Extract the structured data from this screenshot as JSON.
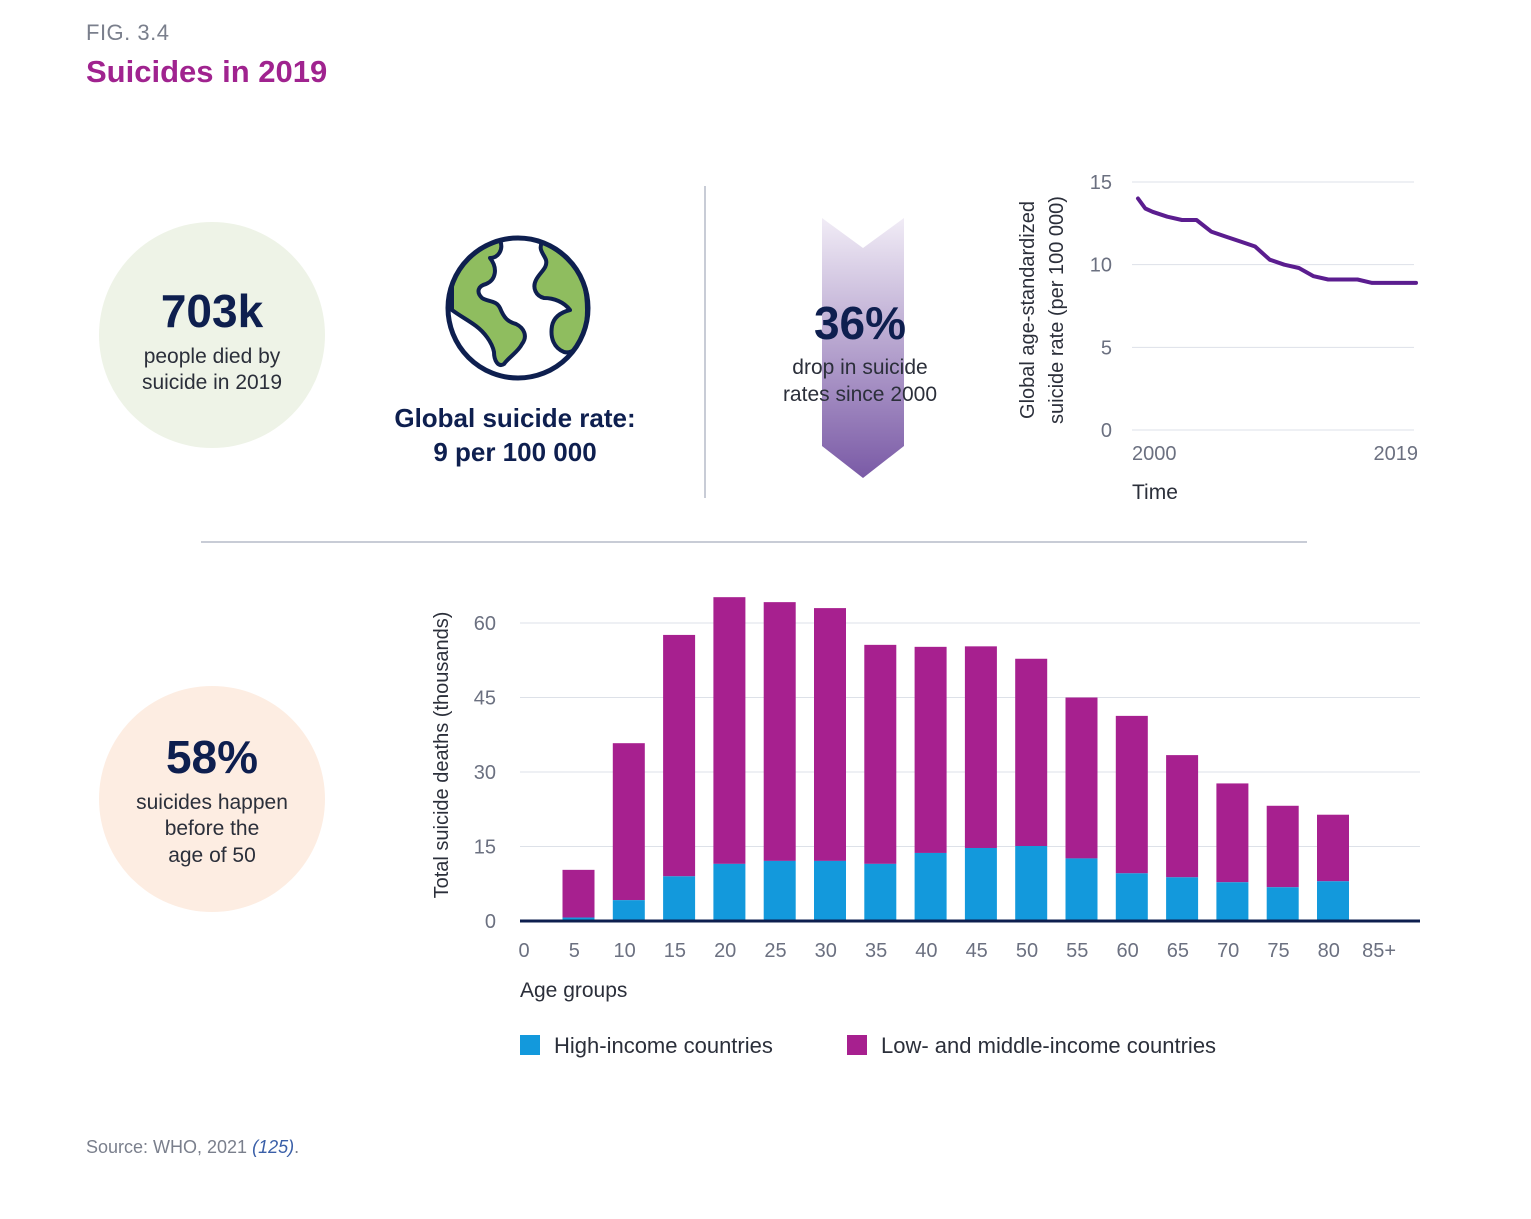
{
  "figure": {
    "number": "FIG. 3.4",
    "title": "Suicides in 2019"
  },
  "stat_deaths": {
    "value": "703k",
    "line1": "people died by",
    "line2": "suicide in 2019"
  },
  "global_rate": {
    "line1": "Global suicide rate:",
    "line2": "9 per 100 000"
  },
  "stat_drop": {
    "value": "36%",
    "line1": "drop in suicide",
    "line2": "rates since 2000"
  },
  "stat_under50": {
    "value": "58%",
    "line1": "suicides happen",
    "line2": "before the",
    "line3": "age of 50"
  },
  "colors": {
    "accent": "#a0238f",
    "navy": "#0e1f4f",
    "high_income": "#1399dc",
    "low_middle_income": "#a7208f",
    "line": "#5b1d8f",
    "globe_land": "#8fbd5f"
  },
  "chart_data": [
    {
      "type": "line",
      "title": "",
      "ylabel_line1": "Global age-standardized",
      "ylabel_line2": "suicide rate (per 100 000)",
      "xlabel": "Time",
      "ylim": [
        0,
        15
      ],
      "xlim": [
        2000,
        2019
      ],
      "yticks": [
        0,
        5,
        10,
        15
      ],
      "xtick_labels": [
        "2000",
        "2019"
      ],
      "grid": true,
      "series": [
        {
          "name": "Global age-standardized suicide rate",
          "x": [
            2000,
            2000.5,
            2001,
            2002,
            2003,
            2004,
            2005,
            2006,
            2007,
            2008,
            2009,
            2010,
            2011,
            2012,
            2013,
            2014,
            2015,
            2016,
            2017,
            2018,
            2019
          ],
          "y": [
            14.0,
            13.4,
            13.2,
            12.9,
            12.7,
            12.7,
            12.0,
            11.7,
            11.4,
            11.1,
            10.3,
            10.0,
            9.8,
            9.3,
            9.1,
            9.1,
            9.1,
            8.9,
            8.9,
            8.9,
            8.9
          ]
        }
      ]
    },
    {
      "type": "bar",
      "stacked": true,
      "title": "",
      "ylabel": "Total suicide deaths (thousands)",
      "xlabel": "Age groups",
      "ylim": [
        0,
        65
      ],
      "yticks": [
        0,
        15,
        30,
        45,
        60
      ],
      "axis_labels": [
        "0",
        "5",
        "10",
        "15",
        "20",
        "25",
        "30",
        "35",
        "40",
        "45",
        "50",
        "55",
        "60",
        "65",
        "70",
        "75",
        "80",
        "85+"
      ],
      "categories": [
        "5",
        "10",
        "15",
        "20",
        "25",
        "30",
        "35",
        "40",
        "45",
        "50",
        "55",
        "60",
        "65",
        "70",
        "75",
        "80"
      ],
      "legend_position": "bottom",
      "series": [
        {
          "name": "High-income countries",
          "values": [
            0.7,
            4.2,
            9.0,
            11.5,
            12.1,
            12.1,
            11.5,
            13.7,
            14.7,
            15.1,
            12.6,
            9.6,
            8.8,
            7.8,
            6.8,
            8.0
          ]
        },
        {
          "name": "Low- and middle-income countries",
          "values": [
            9.6,
            31.6,
            48.6,
            53.7,
            52.1,
            50.9,
            44.1,
            41.5,
            40.6,
            37.7,
            32.4,
            31.7,
            24.6,
            19.9,
            16.4,
            13.4
          ]
        }
      ]
    }
  ],
  "source": {
    "prefix": "Source: WHO, 2021 ",
    "ref": "(125)",
    "suffix": "."
  }
}
